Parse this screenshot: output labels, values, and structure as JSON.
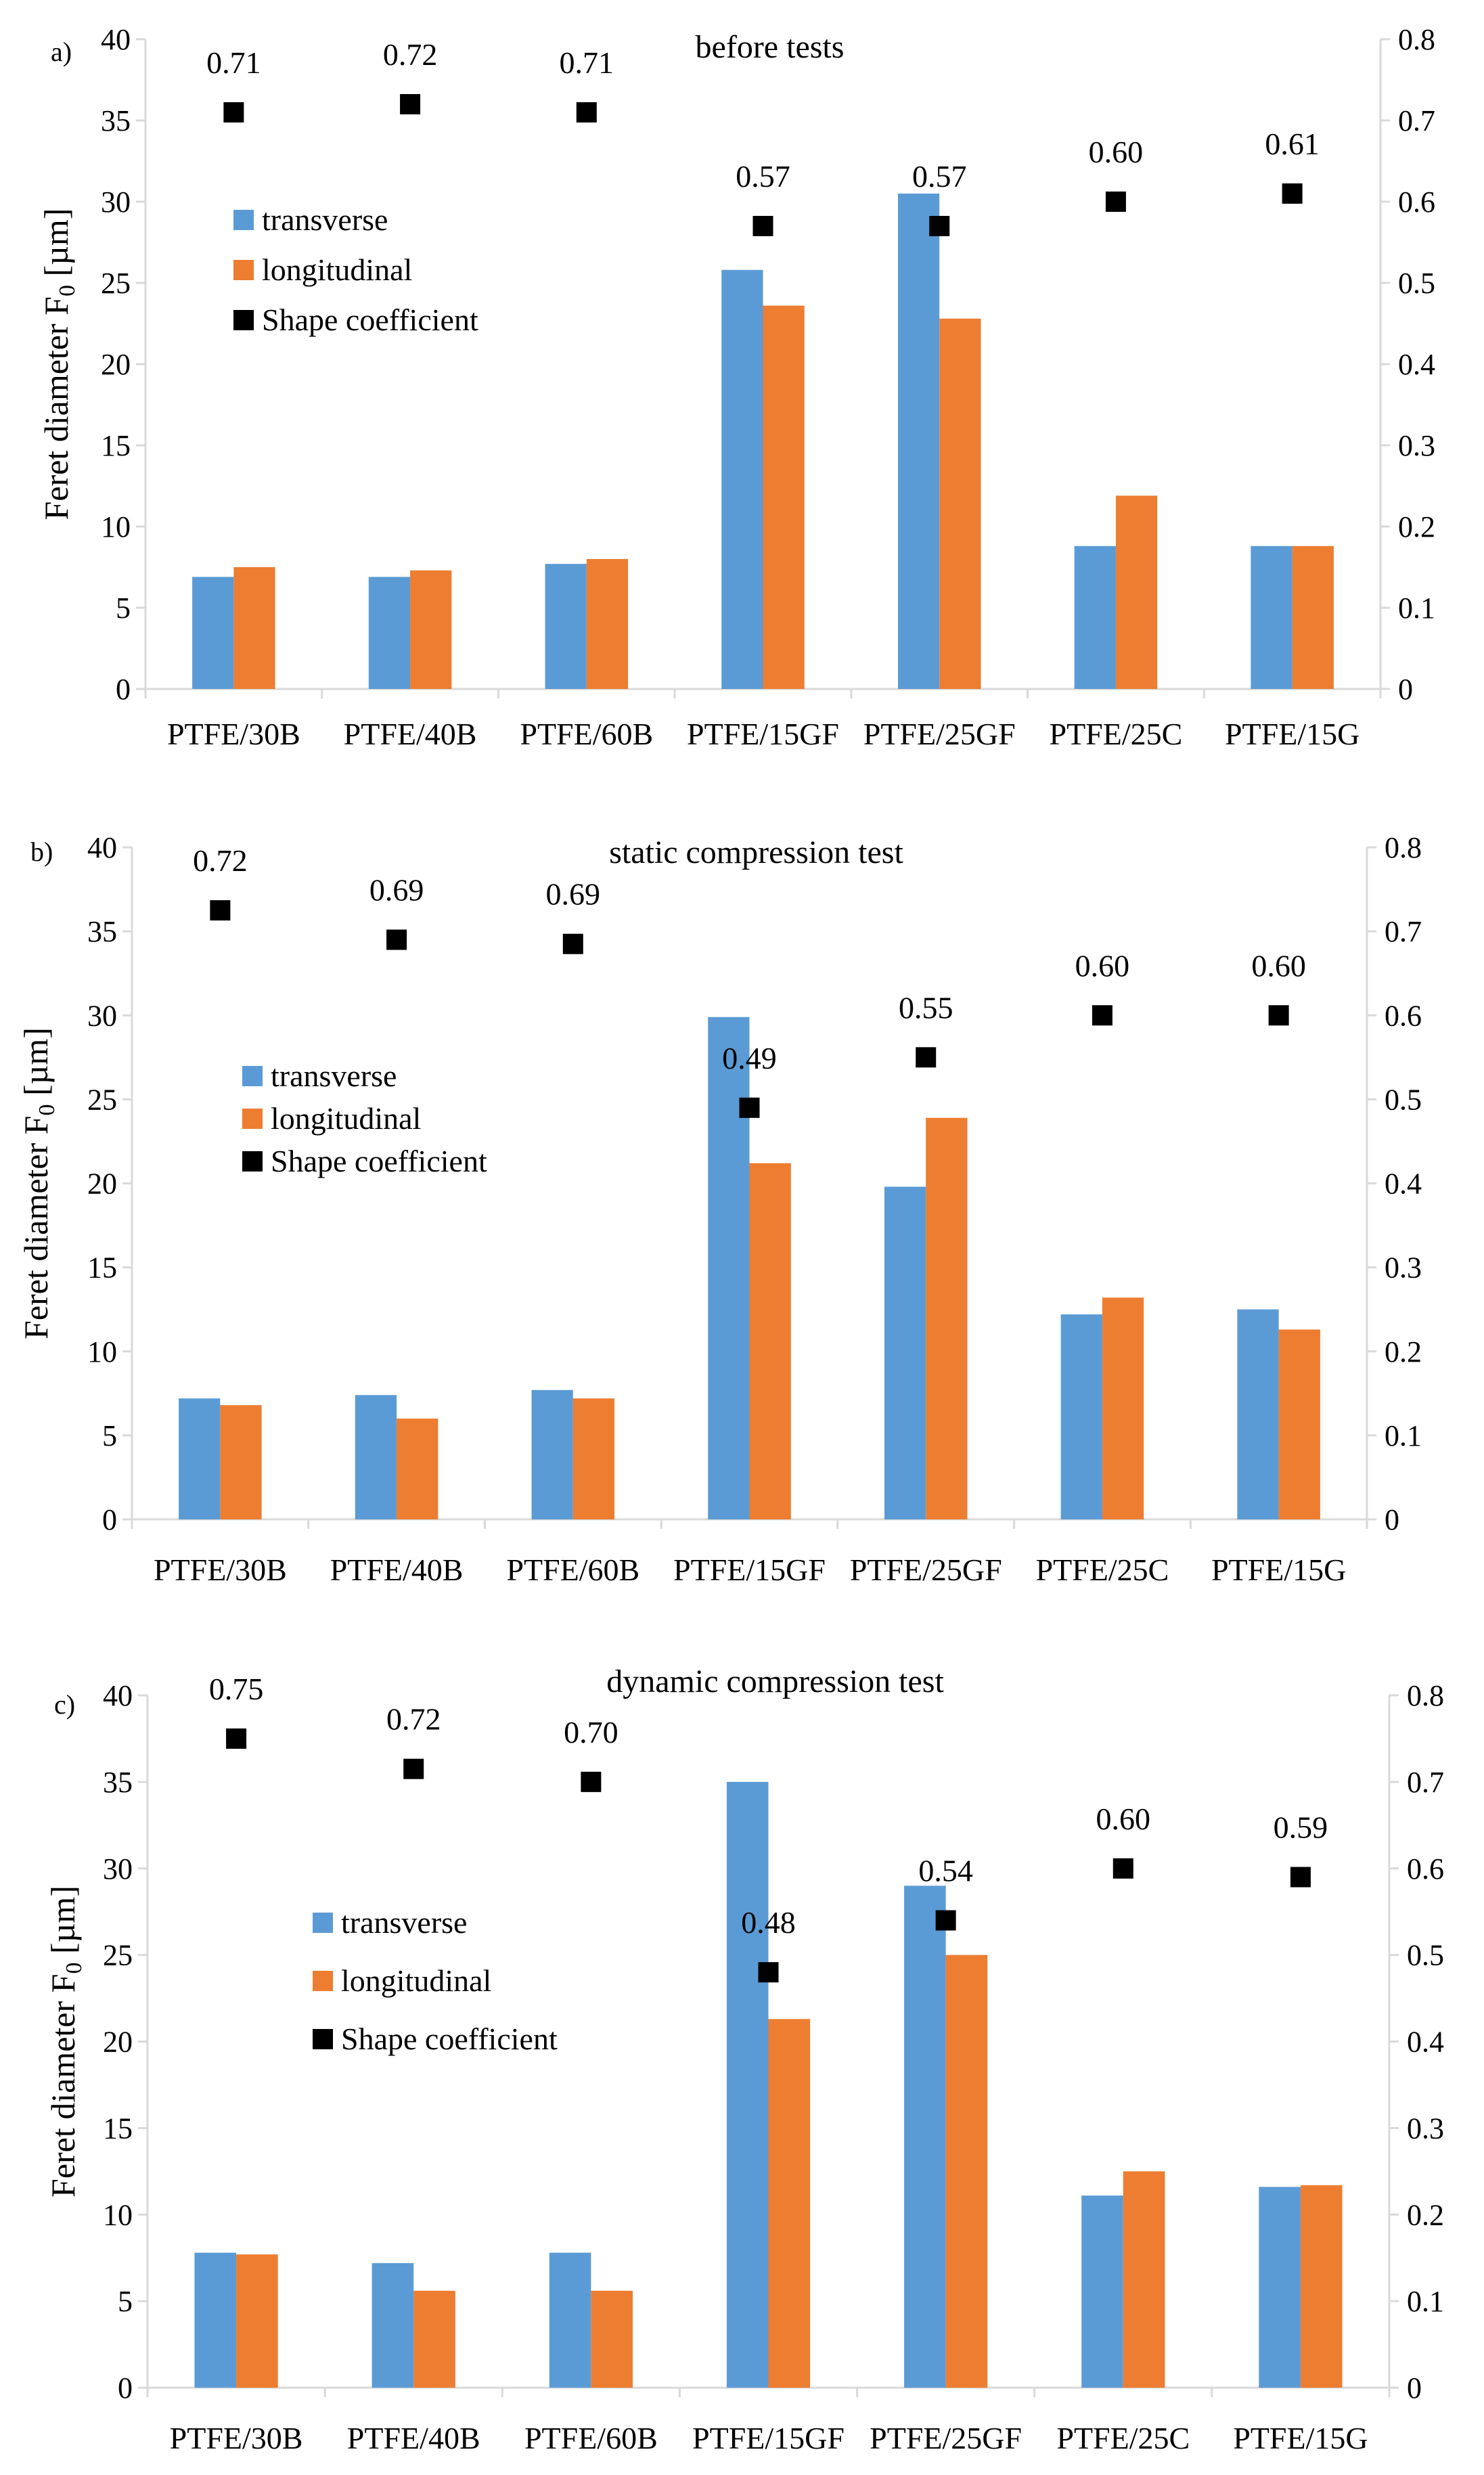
{
  "chart_data": [
    {
      "type": "bar",
      "panel": "a)",
      "title": "before tests",
      "categories": [
        "PTFE/30B",
        "PTFE/40B",
        "PTFE/60B",
        "PTFE/15GF",
        "PTFE/25GF",
        "PTFE/25C",
        "PTFE/15G"
      ],
      "ylabel": "Feret diameter F0 [µm]",
      "ylabel_main": "Feret diameter F",
      "ylabel_sub": "0",
      "ylabel_unit": " [µm]",
      "ylim": [
        0,
        40
      ],
      "y2lim": [
        0,
        0.8
      ],
      "yticks": [
        "0",
        "5",
        "10",
        "15",
        "20",
        "25",
        "30",
        "35",
        "40"
      ],
      "y2ticks": [
        "0",
        "0.1",
        "0.2",
        "0.3",
        "0.4",
        "0.5",
        "0.6",
        "0.7",
        "0.8"
      ],
      "series": [
        {
          "name": "transverse",
          "axis": "left",
          "values": [
            6.9,
            6.9,
            7.7,
            25.8,
            30.5,
            8.8,
            8.8
          ]
        },
        {
          "name": "longitudinal",
          "axis": "left",
          "values": [
            7.5,
            7.3,
            8.0,
            23.6,
            22.8,
            11.9,
            8.8
          ]
        },
        {
          "name": "Shape coefficient",
          "axis": "right",
          "kind": "marker",
          "values": [
            0.71,
            0.72,
            0.71,
            0.57,
            0.57,
            0.6,
            0.61
          ],
          "labels": [
            "0.71",
            "0.72",
            "0.71",
            "0.57",
            "0.57",
            "0.60",
            "0.61"
          ]
        }
      ]
    },
    {
      "type": "bar",
      "panel": "b)",
      "title": "static compression test",
      "categories": [
        "PTFE/30B",
        "PTFE/40B",
        "PTFE/60B",
        "PTFE/15GF",
        "PTFE/25GF",
        "PTFE/25C",
        "PTFE/15G"
      ],
      "ylabel": "Feret diameter F0 [µm]",
      "ylabel_main": "Feret diameter F",
      "ylabel_sub": "0",
      "ylabel_unit": " [µm]",
      "ylim": [
        0,
        40
      ],
      "y2lim": [
        0,
        0.8
      ],
      "yticks": [
        "0",
        "5",
        "10",
        "15",
        "20",
        "25",
        "30",
        "35",
        "40"
      ],
      "y2ticks": [
        "0",
        "0.1",
        "0.2",
        "0.3",
        "0.4",
        "0.5",
        "0.6",
        "0.7",
        "0.8"
      ],
      "series": [
        {
          "name": "transverse",
          "axis": "left",
          "values": [
            7.2,
            7.4,
            7.7,
            29.9,
            19.8,
            12.2,
            12.5
          ]
        },
        {
          "name": "longitudinal",
          "axis": "left",
          "values": [
            6.8,
            6.0,
            7.2,
            21.2,
            23.9,
            13.2,
            11.3
          ]
        },
        {
          "name": "Shape coefficient",
          "axis": "right",
          "kind": "marker",
          "values": [
            0.725,
            0.69,
            0.685,
            0.49,
            0.55,
            0.6,
            0.6
          ],
          "labels": [
            "0.72",
            "0.69",
            "0.69",
            "0.49",
            "0.55",
            "0.60",
            "0.60"
          ]
        }
      ]
    },
    {
      "type": "bar",
      "panel": "c)",
      "title": "dynamic compression test",
      "categories": [
        "PTFE/30B",
        "PTFE/40B",
        "PTFE/60B",
        "PTFE/15GF",
        "PTFE/25GF",
        "PTFE/25C",
        "PTFE/15G"
      ],
      "ylabel": "Feret diameter F0 [µm]",
      "ylabel_main": "Feret diameter F",
      "ylabel_sub": "0",
      "ylabel_unit": " [µm]",
      "ylim": [
        0,
        40
      ],
      "y2lim": [
        0,
        0.8
      ],
      "yticks": [
        "0",
        "5",
        "10",
        "15",
        "20",
        "25",
        "30",
        "35",
        "40"
      ],
      "y2ticks": [
        "0",
        "0.1",
        "0.2",
        "0.3",
        "0.4",
        "0.5",
        "0.6",
        "0.7",
        "0.8"
      ],
      "series": [
        {
          "name": "transverse",
          "axis": "left",
          "values": [
            7.8,
            7.2,
            7.8,
            35.0,
            29.0,
            11.1,
            11.6
          ]
        },
        {
          "name": "longitudinal",
          "axis": "left",
          "values": [
            7.7,
            5.6,
            5.6,
            21.3,
            25.0,
            12.5,
            11.7
          ]
        },
        {
          "name": "Shape coefficient",
          "axis": "right",
          "kind": "marker",
          "values": [
            0.75,
            0.715,
            0.7,
            0.48,
            0.54,
            0.6,
            0.59
          ],
          "labels": [
            "0.75",
            "0.72",
            "0.70",
            "0.48",
            "0.54",
            "0.60",
            "0.59"
          ]
        }
      ]
    }
  ],
  "colors": {
    "transverse": "#5b9bd5",
    "longitudinal": "#ed7d31",
    "shape_coefficient": "#000000",
    "axis": "#d9d9d9"
  }
}
